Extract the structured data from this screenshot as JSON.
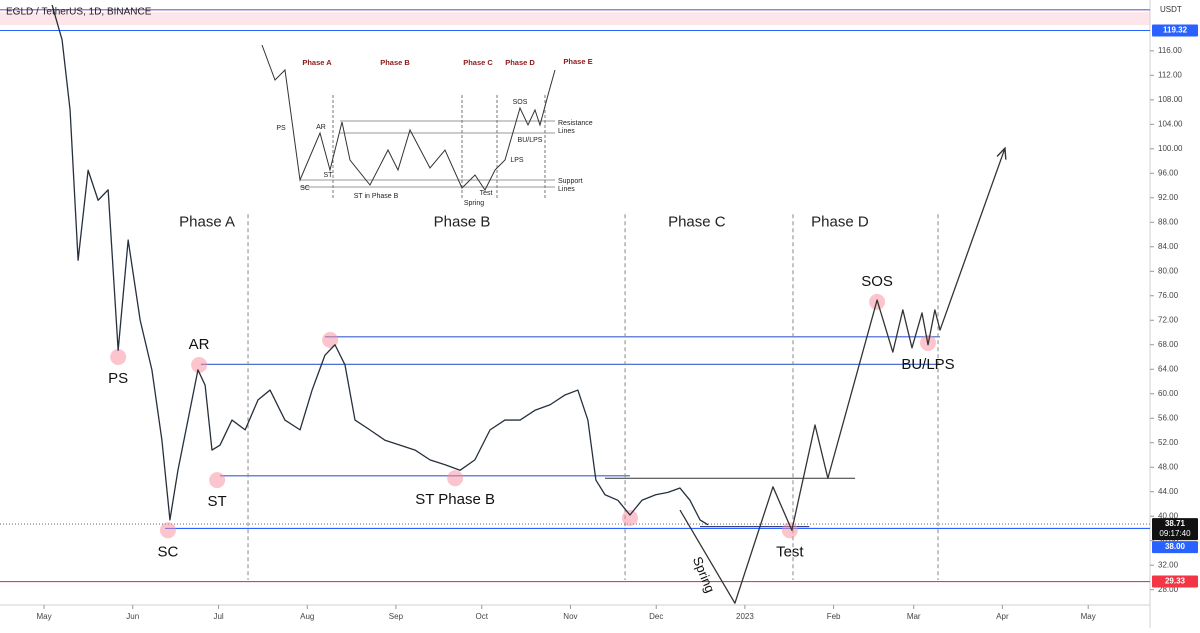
{
  "chart_data": {
    "type": "line",
    "title": "EGLD / TetherUS, 1D, BINANCE",
    "y_axis_label": "USDT",
    "xlim": [
      -15.4,
      386.6
    ],
    "ylim": [
      25.5,
      124.3
    ],
    "xticks": [
      {
        "value": 0,
        "label": "May"
      },
      {
        "value": 31,
        "label": "Jun"
      },
      {
        "value": 61,
        "label": "Jul"
      },
      {
        "value": 92,
        "label": "Aug"
      },
      {
        "value": 123,
        "label": "Sep"
      },
      {
        "value": 153,
        "label": "Oct"
      },
      {
        "value": 184,
        "label": "Nov"
      },
      {
        "value": 214,
        "label": "Dec"
      },
      {
        "value": 245,
        "label": "2023"
      },
      {
        "value": 276,
        "label": "Feb"
      },
      {
        "value": 304,
        "label": "Mar"
      },
      {
        "value": 335,
        "label": "Apr"
      },
      {
        "value": 365,
        "label": "May"
      }
    ],
    "yticks": [
      {
        "value": 28,
        "label": "28.00"
      },
      {
        "value": 32,
        "label": "32.00"
      },
      {
        "value": 36,
        "label": "36.00"
      },
      {
        "value": 40,
        "label": "40.00"
      },
      {
        "value": 44,
        "label": "44.00"
      },
      {
        "value": 48,
        "label": "48.00"
      },
      {
        "value": 52,
        "label": "52.00"
      },
      {
        "value": 56,
        "label": "56.00"
      },
      {
        "value": 60,
        "label": "60.00"
      },
      {
        "value": 64,
        "label": "64.00"
      },
      {
        "value": 68,
        "label": "68.00"
      },
      {
        "value": 72,
        "label": "72.00"
      },
      {
        "value": 76,
        "label": "76.00"
      },
      {
        "value": 80,
        "label": "80.00"
      },
      {
        "value": 84,
        "label": "84.00"
      },
      {
        "value": 88,
        "label": "88.00"
      },
      {
        "value": 92,
        "label": "92.00"
      },
      {
        "value": 96,
        "label": "96.00"
      },
      {
        "value": 100,
        "label": "100.00"
      },
      {
        "value": 104,
        "label": "104.00"
      },
      {
        "value": 108,
        "label": "108.00"
      },
      {
        "value": 112,
        "label": "112.00"
      },
      {
        "value": 116,
        "label": "116.00"
      }
    ],
    "series": [
      {
        "color": "#26303d",
        "x": [
          2.8,
          6.3,
          9.1,
          11.9,
          15.4,
          18.9,
          22.4,
          25.9,
          29.4,
          33.6,
          37.7,
          41.2,
          44.0,
          46.8,
          50.3,
          53.8,
          56.3,
          58.7,
          61.5,
          65.7,
          70.3,
          74.8,
          79.0,
          84.2,
          89.5,
          93.7,
          98.2,
          101.7,
          105.2,
          108.7,
          113.9,
          119.2,
          124.4,
          129.7,
          134.9,
          140.2,
          145.4,
          150.6,
          155.9,
          161.1,
          166.4,
          171.6,
          176.9,
          182.1,
          186.6,
          190.1,
          192.9,
          196.1,
          200.6,
          204.8,
          209.0,
          213.8,
          218.1,
          222.3,
          225.8,
          229.3,
          232.1
        ],
        "values": [
          123.5,
          117.8,
          106.3,
          81.8,
          96.5,
          91.6,
          93.3,
          67.1,
          85.1,
          72.0,
          63.9,
          52.4,
          39.4,
          47.5,
          55.7,
          63.9,
          61.4,
          50.8,
          51.6,
          55.7,
          54.1,
          59.0,
          60.6,
          55.7,
          54.1,
          60.6,
          66.3,
          68.0,
          64.7,
          55.7,
          54.1,
          52.4,
          51.6,
          50.8,
          49.2,
          48.4,
          47.5,
          49.2,
          54.1,
          55.7,
          55.7,
          57.3,
          58.2,
          59.8,
          60.6,
          55.7,
          45.9,
          43.5,
          42.6,
          40.2,
          42.6,
          43.5,
          43.9,
          44.6,
          42.6,
          39.4,
          38.6
        ]
      },
      {
        "color": "#333333",
        "arrow": true,
        "x": [
          222.3,
          241.5,
          254.8,
          261.4,
          269.5,
          274.0,
          291.2,
          296.7,
          300.2,
          303.4,
          306.9,
          309.0,
          311.4,
          313.2,
          335.9
        ],
        "values": [
          41.0,
          25.8,
          44.8,
          37.7,
          54.9,
          46.2,
          75.3,
          66.8,
          73.7,
          67.5,
          73.2,
          68.0,
          73.7,
          70.4,
          100.1
        ]
      }
    ],
    "zones": [
      {
        "from": 120.2,
        "to": 122.3,
        "color": "#fde6ea"
      }
    ],
    "levels": [
      {
        "value": 122.7,
        "color": "#7e57c2"
      },
      {
        "value": 119.32,
        "color": "#2962ff"
      },
      {
        "value": 29.33,
        "color": "#f23645"
      },
      {
        "value": 38.71,
        "color": "#777777",
        "dash": true
      },
      {
        "value": 38.0,
        "color": "#2962ff",
        "x": [
          42.3,
          386.6
        ]
      },
      {
        "value": 69.3,
        "color": "#3a5fcd",
        "x": [
          98.2,
          313.2
        ]
      },
      {
        "value": 64.8,
        "color": "#3a5fcd",
        "x": [
          54.8,
          313.2
        ]
      },
      {
        "value": 46.6,
        "color": "#3a5fcd",
        "x": [
          61.5,
          204.8
        ]
      },
      {
        "value": 46.2,
        "color": "#333333",
        "x": [
          196.1,
          283.5
        ]
      },
      {
        "value": 38.3,
        "color": "#1a237e",
        "x": [
          229.3,
          267.5
        ]
      }
    ],
    "phase_dividers": [
      71.3,
      203.1,
      261.8,
      312.5
    ],
    "phases": [
      {
        "label": "Phase A",
        "x": 57.0
      },
      {
        "label": "Phase B",
        "x": 146.1
      },
      {
        "label": "Phase C",
        "x": 228.2
      },
      {
        "label": "Phase D",
        "x": 278.2
      }
    ],
    "phase_label_y": 88.0,
    "annotations": [
      {
        "label": "PS",
        "x": 25.9,
        "y": 66.0,
        "pos": "below"
      },
      {
        "label": "AR",
        "x": 54.2,
        "y": 64.7,
        "pos": "above"
      },
      {
        "label": "ST",
        "x": 60.5,
        "y": 45.9,
        "pos": "below"
      },
      {
        "label": "SC",
        "x": 43.3,
        "y": 37.7,
        "pos": "below"
      },
      {
        "label": "ST Phase B",
        "x": 143.7,
        "y": 46.2,
        "pos": "below"
      },
      {
        "label": "Test",
        "x": 260.7,
        "y": 37.7,
        "pos": "below"
      },
      {
        "label": "SOS",
        "x": 291.2,
        "y": 75.0,
        "pos": "above"
      },
      {
        "label": "BU/LPS",
        "x": 309.0,
        "y": 68.3,
        "pos": "below"
      }
    ],
    "markers": [
      {
        "x": 100.0,
        "y": 68.8
      },
      {
        "x": 204.8,
        "y": 39.7
      }
    ],
    "notes": [
      {
        "label": "Spring",
        "x": 230.3,
        "y": 30.4,
        "angle": 68
      }
    ],
    "price_tags": [
      {
        "value": 119.32,
        "label": "119.32",
        "color": "#2962ff"
      },
      {
        "value": 38.71,
        "label": "38.71",
        "sublabel": "09:17:40",
        "color": "#111111"
      },
      {
        "value": 38.0,
        "label": "38.00",
        "color": "#2962ff"
      },
      {
        "value": 29.33,
        "label": "29.33",
        "color": "#f23645"
      }
    ]
  },
  "inset": {
    "phases": [
      "Phase A",
      "Phase B",
      "Phase C",
      "Phase D",
      "Phase E"
    ],
    "labels": [
      "PS",
      "AR",
      "SC",
      "ST",
      "ST in Phase B",
      "Spring",
      "Test",
      "SOS",
      "BU/LPS",
      "LPS"
    ],
    "resistance": [
      "Resistance",
      "Lines"
    ],
    "support": [
      "Support",
      "Lines"
    ]
  }
}
